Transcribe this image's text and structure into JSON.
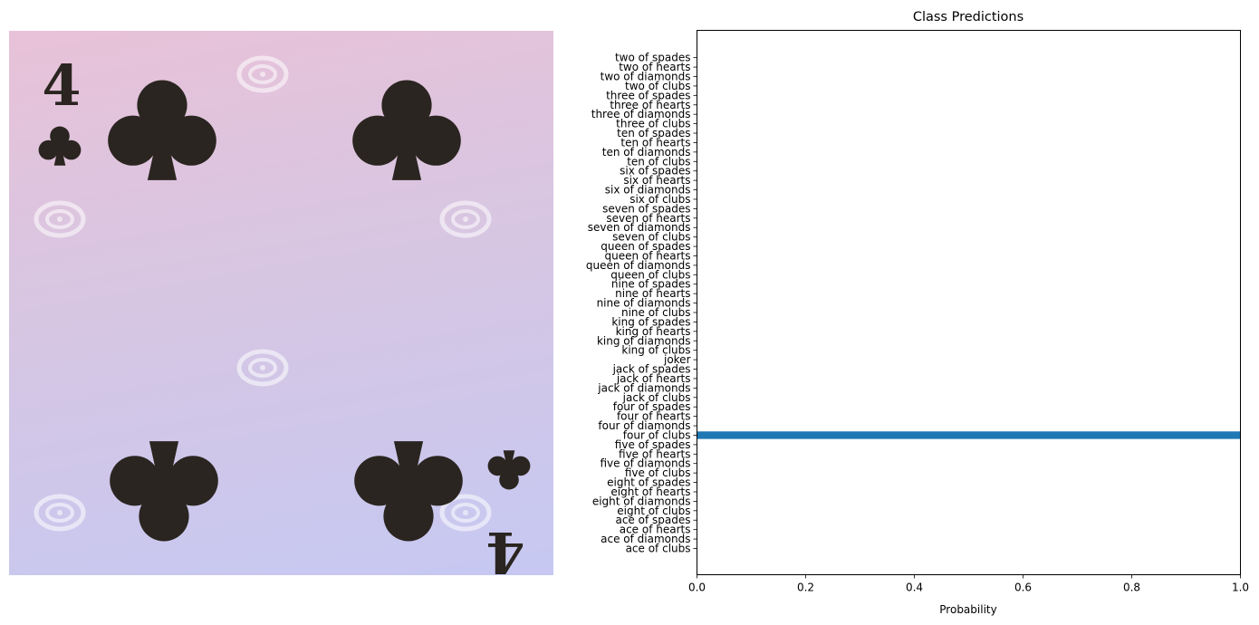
{
  "image": {
    "card_rank": "4",
    "card_suit": "clubs",
    "pips": 4,
    "watermark_icon": "spiral-icon"
  },
  "chart_data": {
    "type": "bar",
    "orientation": "horizontal",
    "title": "Class Predictions",
    "xlabel": "Probability",
    "ylabel": "",
    "xlim": [
      0,
      1
    ],
    "x_ticks": [
      "0.0",
      "0.2",
      "0.4",
      "0.6",
      "0.8",
      "1.0"
    ],
    "x_tick_values": [
      0,
      0.2,
      0.4,
      0.6,
      0.8,
      1.0
    ],
    "grid": false,
    "bar_color": "#1f77b4",
    "categories": [
      "ace of clubs",
      "ace of diamonds",
      "ace of hearts",
      "ace of spades",
      "eight of clubs",
      "eight of diamonds",
      "eight of hearts",
      "eight of spades",
      "five of clubs",
      "five of diamonds",
      "five of hearts",
      "five of spades",
      "four of clubs",
      "four of diamonds",
      "four of hearts",
      "four of spades",
      "jack of clubs",
      "jack of diamonds",
      "jack of hearts",
      "jack of spades",
      "joker",
      "king of clubs",
      "king of diamonds",
      "king of hearts",
      "king of spades",
      "nine of clubs",
      "nine of diamonds",
      "nine of hearts",
      "nine of spades",
      "queen of clubs",
      "queen of diamonds",
      "queen of hearts",
      "queen of spades",
      "seven of clubs",
      "seven of diamonds",
      "seven of hearts",
      "seven of spades",
      "six of clubs",
      "six of diamonds",
      "six of hearts",
      "six of spades",
      "ten of clubs",
      "ten of diamonds",
      "ten of hearts",
      "ten of spades",
      "three of clubs",
      "three of diamonds",
      "three of hearts",
      "three of spades",
      "two of clubs",
      "two of diamonds",
      "two of hearts",
      "two of spades"
    ],
    "values": [
      0,
      0,
      0,
      0,
      0,
      0,
      0,
      0,
      0,
      0,
      0,
      0,
      1.0,
      0,
      0,
      0,
      0,
      0,
      0,
      0,
      0,
      0,
      0,
      0,
      0,
      0,
      0,
      0,
      0,
      0,
      0,
      0,
      0,
      0,
      0,
      0,
      0,
      0,
      0,
      0,
      0,
      0,
      0,
      0,
      0,
      0,
      0,
      0,
      0,
      0,
      0,
      0,
      0
    ]
  }
}
